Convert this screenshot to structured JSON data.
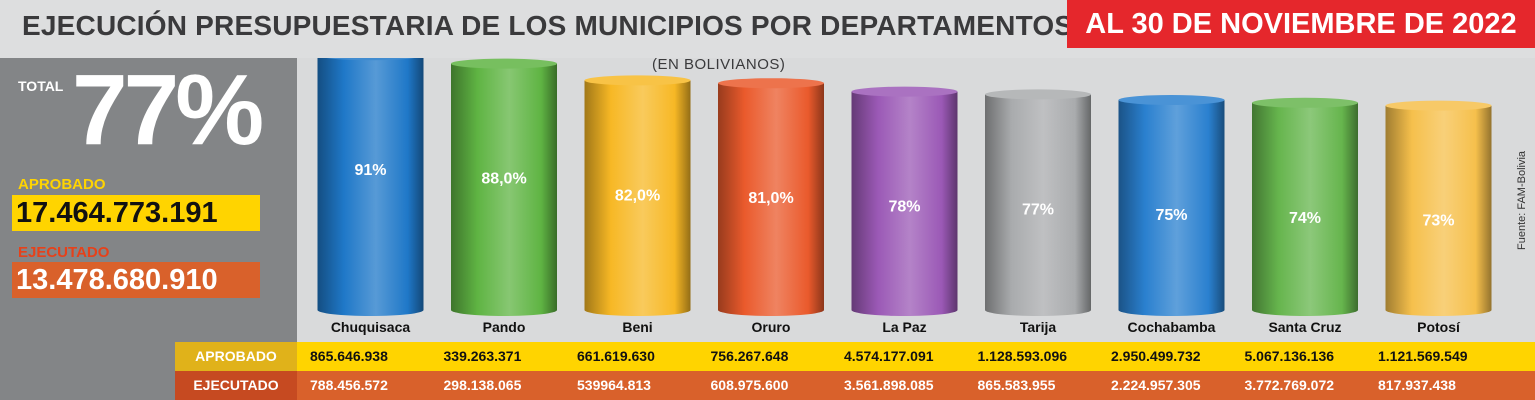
{
  "title": "EJECUCIÓN PRESUPUESTARIA DE LOS MUNICIPIOS POR DEPARTAMENTOS",
  "date_badge": "AL 30 DE NOVIEMBRE DE 2022",
  "subtitle": "(EN BOLIVIANOS)",
  "source": "Fuente: FAM-Bolivia",
  "summary": {
    "total_label": "TOTAL",
    "total_value": "77%",
    "aprobado_label": "APROBADO",
    "aprobado_value": "17.464.773.191",
    "ejecutado_label": "EJECUTADO",
    "ejecutado_value": "13.478.680.910"
  },
  "table": {
    "aprobado_label": "APROBADO",
    "ejecutado_label": "EJECUTADO"
  },
  "chart_data": {
    "type": "bar",
    "categories": [
      "Chuquisaca",
      "Pando",
      "Beni",
      "Oruro",
      "La Paz",
      "Tarija",
      "Cochabamba",
      "Santa Cruz",
      "Potosí"
    ],
    "values": [
      91,
      88,
      82,
      81,
      78,
      77,
      75,
      74,
      73
    ],
    "value_labels": [
      "91%",
      "88,0%",
      "82,0%",
      "81,0%",
      "78%",
      "77%",
      "75%",
      "74%",
      "73%"
    ],
    "aprobado": [
      "865.646.938",
      "339.263.371",
      "661.619.630",
      "756.267.648",
      "4.574.177.091",
      "1.128.593.096",
      "2.950.499.732",
      "5.067.136.136",
      "1.121.569.549"
    ],
    "ejecutado": [
      "788.456.572",
      "298.138.065",
      "539964.813",
      "608.975.600",
      "3.561.898.085",
      "865.583.955",
      "2.224.957.305",
      "3.772.769.072",
      "817.937.438"
    ],
    "colors": [
      "#1f78c8",
      "#5fb443",
      "#f7b825",
      "#ea5a2c",
      "#9b59b6",
      "#a9abad",
      "#2a80cf",
      "#66b54d",
      "#f6c04c"
    ],
    "ylim": [
      0,
      100
    ]
  }
}
